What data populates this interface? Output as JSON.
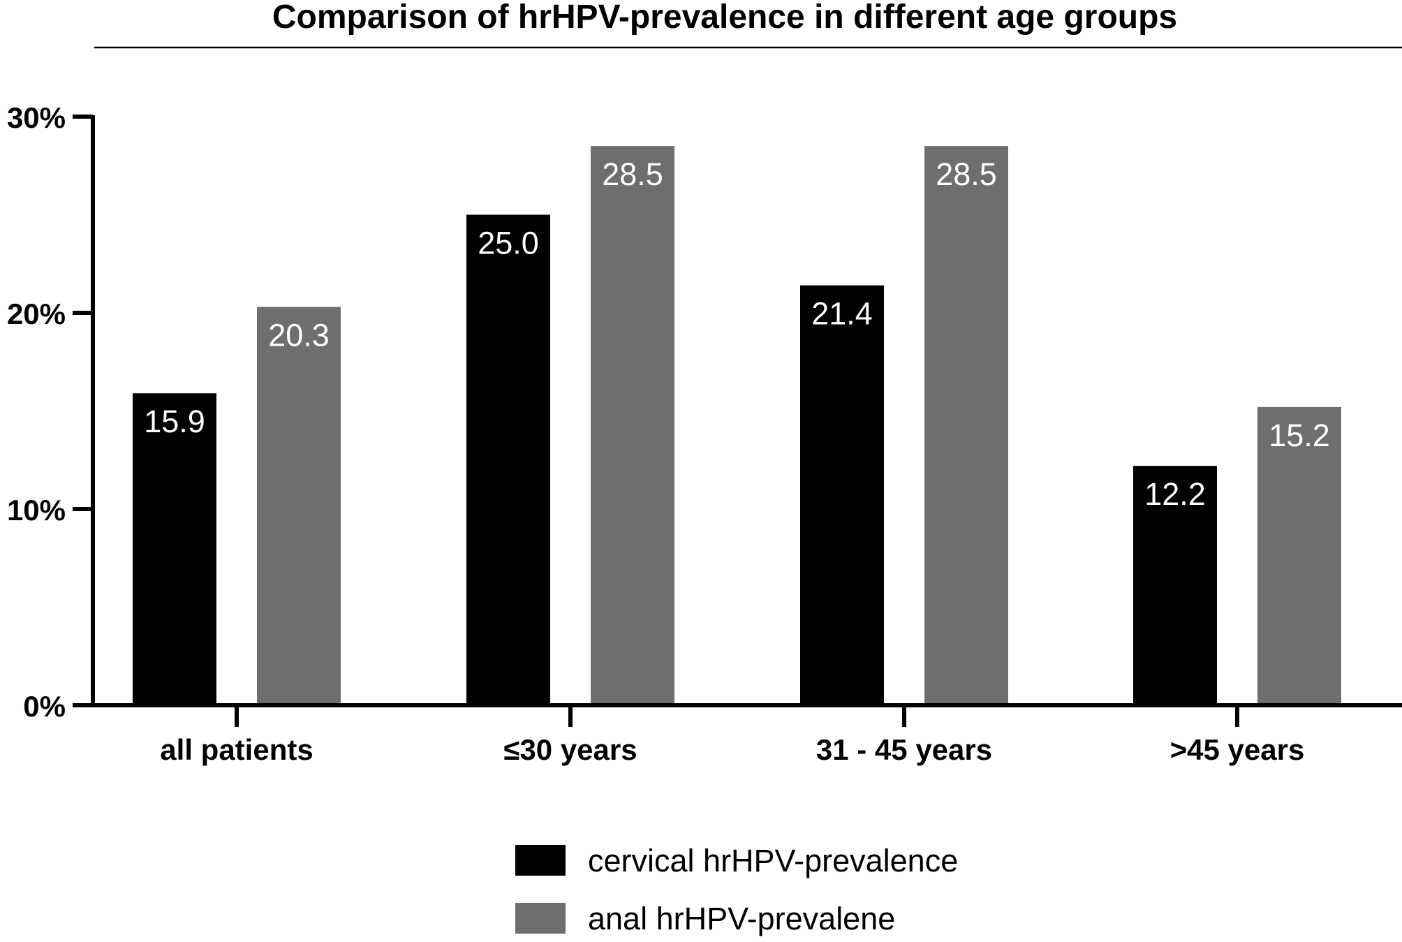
{
  "chart_data": {
    "type": "bar",
    "title": "Comparison of hrHPV-prevalence in different age groups",
    "xlabel": "",
    "ylabel": "",
    "ylim": [
      0,
      30
    ],
    "y_unit": "%",
    "yticks": [
      0,
      10,
      20,
      30
    ],
    "grid": false,
    "legend_position": "bottom-center",
    "categories": [
      "all patients",
      "≤30 years",
      "31 - 45 years",
      ">45 years"
    ],
    "series": [
      {
        "name": "cervical hrHPV-prevalence",
        "color": "#000000",
        "values": [
          15.9,
          25.0,
          21.4,
          12.2
        ],
        "labels": [
          "15.9",
          "25.0",
          "21.4",
          "12.2"
        ]
      },
      {
        "name": "anal hrHPV-prevalene",
        "color": "#6d6e70",
        "values": [
          20.3,
          28.5,
          28.5,
          15.2
        ],
        "labels": [
          "20.3",
          "28.5",
          "28.5",
          "15.2"
        ]
      }
    ]
  }
}
